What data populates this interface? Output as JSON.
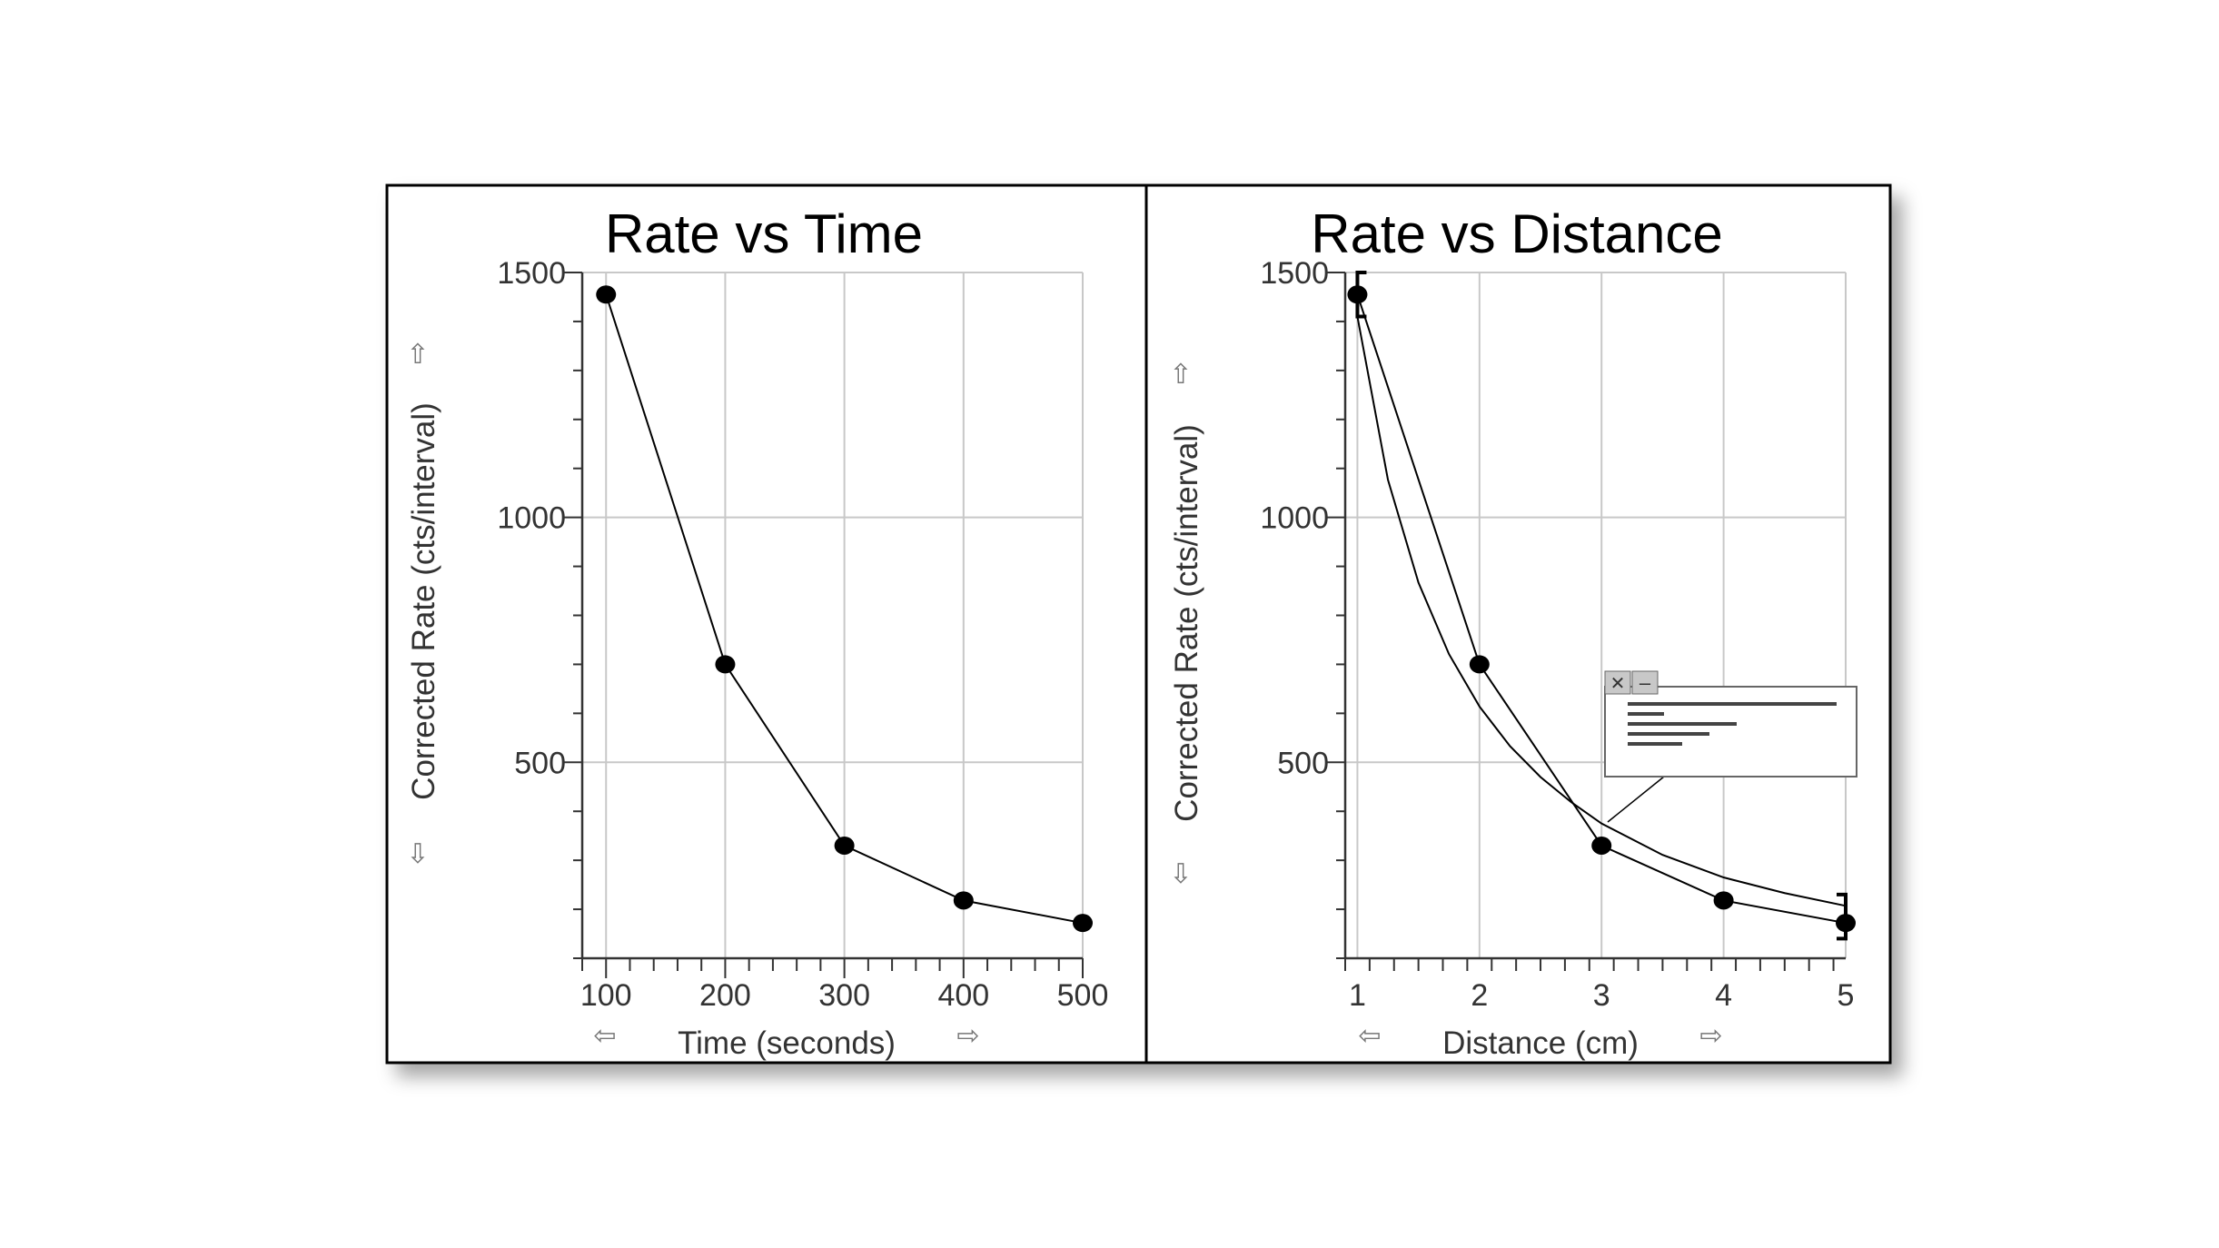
{
  "chart_data": [
    {
      "type": "line",
      "title": "Rate vs Time",
      "xlabel": "Time (seconds)",
      "ylabel": "Corrected Rate (cts/interval)",
      "x": [
        100,
        200,
        300,
        400,
        500
      ],
      "series": [
        {
          "values": [
            1455,
            700,
            330,
            218,
            172
          ],
          "markers": true
        }
      ],
      "xticks": [
        "100",
        "200",
        "300",
        "400",
        "500"
      ],
      "yticks": [
        "500",
        "1000",
        "1500"
      ],
      "xlim": [
        80,
        500
      ],
      "ylim": [
        100,
        1500
      ],
      "grid": true
    },
    {
      "type": "line",
      "title": "Rate vs Distance",
      "xlabel": "Distance (cm)",
      "ylabel": "Corrected Rate (cts/interval)",
      "x": [
        1,
        2,
        3,
        4,
        5
      ],
      "series": [
        {
          "values": [
            1455,
            700,
            330,
            218,
            172
          ],
          "markers": true
        }
      ],
      "fit": {
        "x": [
          1,
          1.25,
          1.5,
          1.75,
          2,
          2.25,
          2.5,
          2.75,
          3,
          3.5,
          4,
          4.5,
          5
        ],
        "values": [
          1410,
          1077,
          867,
          721,
          614,
          533,
          470,
          419,
          375,
          311,
          265,
          233,
          207
        ],
        "range": [
          1,
          5
        ]
      },
      "xticks": [
        "1",
        "2",
        "3",
        "4",
        "5"
      ],
      "yticks": [
        "500",
        "1000",
        "1500"
      ],
      "xlim": [
        0.9,
        5
      ],
      "ylim": [
        100,
        1500
      ],
      "grid": true
    }
  ],
  "colors": {
    "line": "#000000",
    "grid": "#c8c8c8",
    "axis": "#333333",
    "arrow": "#777777"
  },
  "icons": {
    "up": "⇧",
    "down": "⇩",
    "left": "⇦",
    "right": "⇨",
    "close": "✕",
    "minimize": "–"
  }
}
